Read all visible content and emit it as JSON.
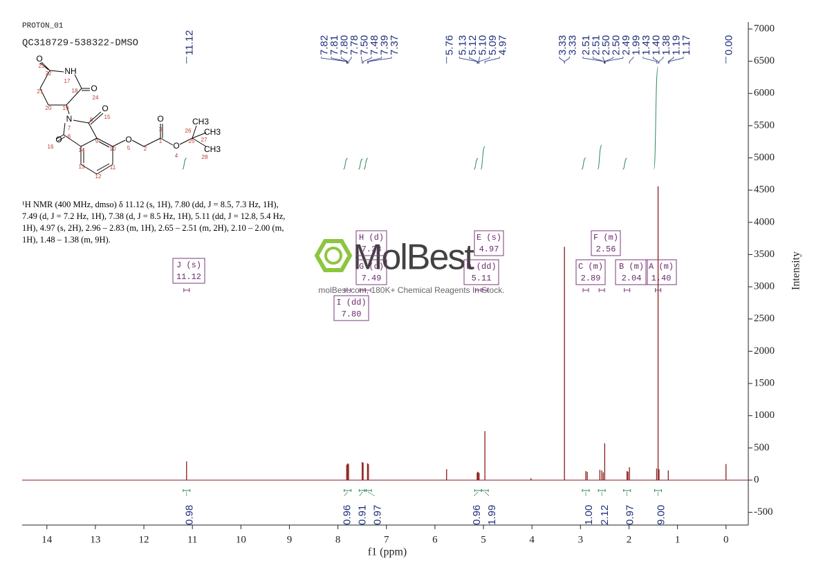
{
  "chart_data": {
    "type": "nmr",
    "title": "PROTON_01",
    "subtitle": "QC318729-538322-DMSO",
    "xlabel": "f1 (ppm)",
    "ylabel": "Intensity",
    "xlim": [
      14.51,
      -0.46
    ],
    "xticks": [
      14,
      13,
      12,
      11,
      10,
      9,
      8,
      7,
      6,
      5,
      4,
      3,
      2,
      1,
      0
    ],
    "ylim": [
      -697,
      7107
    ],
    "yticks": [
      -500,
      0,
      500,
      1000,
      1500,
      2000,
      2500,
      3000,
      3500,
      4000,
      4500,
      5000,
      5500,
      6000,
      6500,
      7000
    ],
    "color": "#8b1a1a",
    "peaks": {
      "x": [
        11.12,
        7.82,
        7.8,
        7.78,
        7.5,
        7.48,
        7.39,
        7.37,
        5.76,
        5.13,
        5.12,
        5.1,
        5.09,
        4.97,
        4.02,
        3.33,
        2.89,
        2.86,
        2.6,
        2.56,
        2.53,
        2.5,
        2.04,
        2.02,
        1.99,
        1.43,
        1.4,
        1.38,
        1.19,
        0.0
      ],
      "values": [
        290,
        240,
        260,
        250,
        280,
        270,
        260,
        250,
        170,
        110,
        130,
        120,
        110,
        760,
        30,
        3620,
        140,
        130,
        160,
        150,
        120,
        570,
        140,
        130,
        200,
        180,
        4560,
        170,
        150,
        250
      ]
    },
    "peak_labels": {
      "values": [
        11.12,
        7.82,
        7.81,
        7.8,
        7.78,
        7.5,
        7.48,
        7.39,
        7.37,
        5.76,
        5.13,
        5.12,
        5.1,
        5.09,
        4.97,
        3.33,
        3.33,
        2.51,
        2.51,
        2.5,
        2.5,
        2.49,
        1.99,
        1.43,
        1.4,
        1.38,
        1.19,
        1.17,
        0.0
      ],
      "value_labels": [
        "11.12",
        "7.82",
        "7.81",
        "7.80",
        "7.78",
        "7.50",
        "7.48",
        "7.39",
        "7.37",
        "5.76",
        "5.13",
        "5.12",
        "5.10",
        "5.09",
        "4.97",
        "3.33",
        "3.33",
        "2.51",
        "2.51",
        "2.50",
        "2.50",
        "2.49",
        "1.99",
        "1.43",
        "1.40",
        "1.38",
        "1.19",
        "1.17",
        "0.00"
      ]
    },
    "integrals": {
      "x": [
        11.12,
        7.8,
        7.49,
        7.38,
        5.11,
        4.97,
        2.89,
        2.56,
        2.04,
        1.4
      ],
      "values": [
        0.98,
        0.96,
        0.91,
        0.97,
        0.96,
        1.99,
        1.0,
        2.12,
        0.97,
        9.0
      ],
      "value_labels": [
        "0.98",
        "0.96",
        "0.91",
        "0.97",
        "0.96",
        "1.99",
        "1.00",
        "2.12",
        "0.97",
        "9.00"
      ]
    },
    "multiplets": [
      {
        "name": "J (s)",
        "value": 11.12,
        "label": "11.12"
      },
      {
        "name": "H (d)",
        "value": 7.38,
        "label": "7.38"
      },
      {
        "name": "G (d)",
        "value": 7.49,
        "label": "7.49"
      },
      {
        "name": "I (dd)",
        "value": 7.8,
        "label": "7.80"
      },
      {
        "name": "E (s)",
        "value": 4.97,
        "label": "4.97"
      },
      {
        "name": "D (dd)",
        "value": 5.11,
        "label": "5.11"
      },
      {
        "name": "F (m)",
        "value": 2.56,
        "label": "2.56"
      },
      {
        "name": "C (m)",
        "value": 2.89,
        "label": "2.89"
      },
      {
        "name": "B (m)",
        "value": 2.04,
        "label": "2.04"
      },
      {
        "name": "A (m)",
        "value": 1.4,
        "label": "1.40"
      }
    ],
    "description": "¹H NMR (400 MHz, dmso) δ 11.12 (s, 1H), 7.80 (dd, J = 8.5, 7.3 Hz, 1H), 7.49 (d, J = 7.2 Hz, 1H), 7.38 (d, J = 8.5 Hz, 1H), 5.11 (dd, J = 12.8, 5.4 Hz, 1H), 4.97 (s, 2H), 2.96 – 2.83 (m, 1H), 2.65 – 2.51 (m, 2H), 2.10 – 2.00 (m, 1H), 1.48 – 1.38 (m, 9H).",
    "watermark": "MolBest",
    "watermark_subtitle": "molBest.com, 180K+ Chemical Reagents In Stock.",
    "molecule": {
      "atom_labels": [
        "O",
        "NH",
        "O",
        "N",
        "O",
        "O",
        "O",
        "O",
        "O",
        "CH3",
        "CH3",
        "CH3"
      ],
      "atom_numbers": [
        23,
        22,
        17,
        21,
        18,
        24,
        20,
        19,
        7,
        8,
        15,
        16,
        6,
        14,
        9,
        10,
        5,
        2,
        1,
        3,
        4,
        26,
        25,
        27,
        28,
        13,
        11,
        12
      ]
    }
  }
}
